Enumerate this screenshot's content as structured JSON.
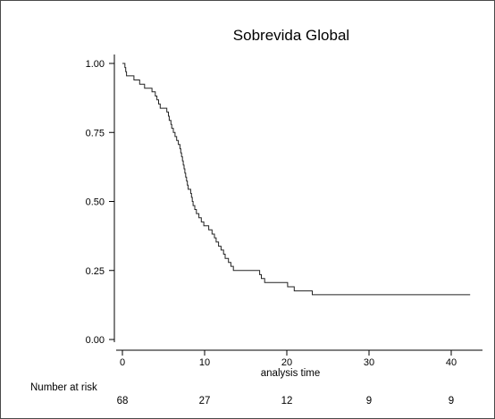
{
  "chart_data": {
    "type": "line",
    "title": "Sobrevida Global",
    "xlabel": "analysis time",
    "ylabel": "",
    "xlim": [
      0,
      42.5
    ],
    "ylim": [
      0,
      1
    ],
    "x_ticks": [
      0,
      10,
      20,
      30,
      40
    ],
    "x_tick_labels": [
      "0",
      "10",
      "20",
      "30",
      "40"
    ],
    "y_ticks": [
      0,
      0.25,
      0.5,
      0.75,
      1
    ],
    "y_tick_labels": [
      "0.00",
      "0.25",
      "0.50",
      "0.75",
      "1.00"
    ],
    "grid": false,
    "series": [
      {
        "step": true,
        "points": [
          [
            0,
            1.0
          ],
          [
            0.3,
            0.985
          ],
          [
            0.4,
            0.97
          ],
          [
            0.5,
            0.955
          ],
          [
            1.4,
            0.94
          ],
          [
            2.1,
            0.925
          ],
          [
            2.7,
            0.91
          ],
          [
            3.6,
            0.897
          ],
          [
            4.0,
            0.882
          ],
          [
            4.2,
            0.868
          ],
          [
            4.4,
            0.853
          ],
          [
            4.6,
            0.838
          ],
          [
            5.4,
            0.824
          ],
          [
            5.6,
            0.809
          ],
          [
            5.7,
            0.794
          ],
          [
            5.9,
            0.779
          ],
          [
            6.0,
            0.765
          ],
          [
            6.2,
            0.75
          ],
          [
            6.4,
            0.735
          ],
          [
            6.6,
            0.721
          ],
          [
            6.8,
            0.706
          ],
          [
            7.0,
            0.691
          ],
          [
            7.1,
            0.676
          ],
          [
            7.2,
            0.662
          ],
          [
            7.3,
            0.647
          ],
          [
            7.4,
            0.632
          ],
          [
            7.5,
            0.618
          ],
          [
            7.6,
            0.603
          ],
          [
            7.7,
            0.588
          ],
          [
            7.8,
            0.574
          ],
          [
            7.9,
            0.559
          ],
          [
            8.0,
            0.544
          ],
          [
            8.3,
            0.529
          ],
          [
            8.4,
            0.515
          ],
          [
            8.5,
            0.5
          ],
          [
            8.6,
            0.485
          ],
          [
            8.8,
            0.471
          ],
          [
            9.0,
            0.456
          ],
          [
            9.3,
            0.441
          ],
          [
            9.6,
            0.426
          ],
          [
            9.9,
            0.412
          ],
          [
            10.5,
            0.397
          ],
          [
            10.9,
            0.382
          ],
          [
            11.2,
            0.368
          ],
          [
            11.4,
            0.353
          ],
          [
            11.7,
            0.338
          ],
          [
            12.0,
            0.324
          ],
          [
            12.3,
            0.309
          ],
          [
            12.5,
            0.294
          ],
          [
            12.9,
            0.279
          ],
          [
            13.2,
            0.265
          ],
          [
            13.5,
            0.25
          ],
          [
            16.7,
            0.235
          ],
          [
            16.9,
            0.221
          ],
          [
            17.3,
            0.206
          ],
          [
            20.1,
            0.191
          ],
          [
            20.9,
            0.176
          ],
          [
            23.1,
            0.162
          ]
        ],
        "x_end": 42.3
      }
    ],
    "risk_table": {
      "label": "Number at risk",
      "times": [
        0,
        10,
        20,
        30,
        40
      ],
      "values": [
        "68",
        "27",
        "12",
        "9",
        "9"
      ]
    }
  }
}
